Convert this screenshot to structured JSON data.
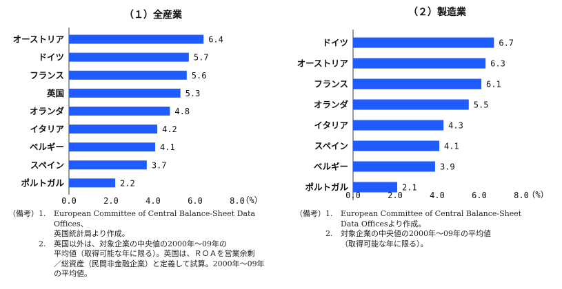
{
  "chart_data": [
    {
      "type": "bar",
      "orientation": "horizontal",
      "title": "（１）全産業",
      "categories": [
        "オーストリア",
        "ドイツ",
        "フランス",
        "英国",
        "オランダ",
        "イタリア",
        "ベルギー",
        "スペイン",
        "ポルトガル"
      ],
      "values": [
        6.4,
        5.7,
        5.6,
        5.3,
        4.8,
        4.2,
        4.1,
        3.7,
        2.2
      ],
      "value_labels": [
        "6.4",
        "5.7",
        "5.6",
        "5.3",
        "4.8",
        "4.2",
        "4.1",
        "3.7",
        "2.2"
      ],
      "xlim": [
        0,
        8
      ],
      "xticks": [
        "0.0",
        "2.0",
        "4.0",
        "6.0",
        "8.0"
      ],
      "unit": "（%）",
      "bar_color": "#1f5bff",
      "grid": false
    },
    {
      "type": "bar",
      "orientation": "horizontal",
      "title": "（２）製造業",
      "categories": [
        "ドイツ",
        "オーストリア",
        "フランス",
        "オランダ",
        "イタリア",
        "スペイン",
        "ベルギー",
        "ポルトガル"
      ],
      "values": [
        6.7,
        6.3,
        6.1,
        5.5,
        4.3,
        4.1,
        3.9,
        2.1
      ],
      "value_labels": [
        "6.7",
        "6.3",
        "6.1",
        "5.5",
        "4.3",
        "4.1",
        "3.9",
        "2.1"
      ],
      "xlim": [
        0,
        8
      ],
      "xticks": [
        "0.0",
        "2.0",
        "4.0",
        "6.0",
        "8.0"
      ],
      "unit": "（%）",
      "bar_color": "#1f5bff",
      "grid": false
    }
  ],
  "notes_left": {
    "label": "（備考）",
    "items": [
      {
        "num": "1.",
        "lines": [
          "European Committee of Central Balance-Sheet Data Offices、",
          "英国統計局より作成。"
        ]
      },
      {
        "num": "2.",
        "lines": [
          "英国以外は、対象企業の中央値の2000年～09年の",
          "平均値（取得可能な年に限る）。英国は、ＲＯＡを営業余剰",
          "／総資産（民間非金融企業）と定義して試算。2000年～09年",
          "の平均値。"
        ]
      }
    ]
  },
  "notes_right": {
    "label": "（備考）",
    "items": [
      {
        "num": "1.",
        "lines": [
          "European Committee of Central Balance-Sheet",
          "Data Officesより作成。"
        ]
      },
      {
        "num": "2.",
        "lines": [
          "対象企業の中央値の2000年～09年の平均値",
          "（取得可能な年に限る）。"
        ]
      }
    ]
  }
}
